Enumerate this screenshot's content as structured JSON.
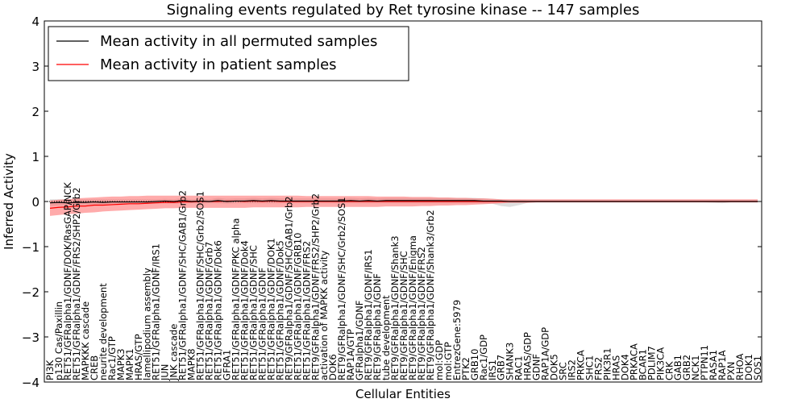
{
  "chart_data": {
    "type": "line",
    "title": "Signaling events regulated by Ret tyrosine kinase -- 147 samples",
    "xlabel": "Cellular Entities",
    "ylabel": "Inferred Activity",
    "ylim": [
      -4,
      4
    ],
    "yticks": [
      4,
      3,
      2,
      1,
      0,
      -1,
      -2,
      -3,
      -4
    ],
    "legend_placement": "top-left",
    "grid": false,
    "series": [
      {
        "name": "Mean activity in all permuted samples",
        "color": "#000000",
        "values": [
          -0.03,
          -0.02,
          -0.03,
          -0.02,
          -0.02,
          -0.01,
          -0.02,
          -0.01,
          -0.01,
          -0.01,
          -0.01,
          -0.01,
          0,
          0.01,
          0,
          0.02,
          0,
          0.01,
          0,
          0.02,
          0,
          0.01,
          0.01,
          0.02,
          0.01,
          0.02,
          0.01,
          0.01,
          0.01,
          0.01,
          0.01,
          0.01,
          0.01,
          0.01,
          0.02,
          0.01,
          0.02,
          0.01,
          0.02,
          0.02,
          0.02,
          0.02,
          0.02,
          0.02,
          0.02,
          0.02,
          0.02,
          0.02,
          0.02,
          0.01,
          0.01,
          0.01,
          0,
          0,
          0,
          0,
          0,
          0,
          0,
          0,
          0,
          0,
          0,
          0,
          0,
          0,
          0,
          0,
          0,
          0,
          0,
          0,
          0,
          0,
          0,
          0,
          0,
          0,
          0,
          0,
          0
        ]
      },
      {
        "name": "Mean activity in patient samples",
        "color": "#ff0000",
        "values": [
          -0.15,
          -0.13,
          -0.12,
          -0.1,
          -0.1,
          -0.08,
          -0.08,
          -0.07,
          -0.06,
          -0.05,
          -0.05,
          -0.04,
          -0.03,
          -0.02,
          -0.02,
          -0.01,
          -0.01,
          0,
          0,
          0,
          0.01,
          0.01,
          0,
          0.01,
          0,
          0.01,
          0,
          0,
          0,
          0,
          0,
          0,
          0,
          0,
          0,
          0,
          0,
          0,
          0,
          0,
          0,
          0,
          0,
          0,
          0,
          0,
          0,
          0,
          0,
          0,
          0,
          0,
          0,
          0,
          0,
          0,
          0,
          0,
          0,
          0,
          0,
          0,
          0,
          0,
          0,
          0,
          0,
          0,
          0,
          0,
          0,
          0,
          0,
          0,
          0,
          0,
          0,
          0,
          0,
          0,
          0
        ]
      }
    ],
    "permuted_band": {
      "color": "#c8c8c8",
      "lower": [
        -0.1,
        -0.09,
        -0.08,
        -0.08,
        -0.07,
        -0.07,
        -0.06,
        -0.06,
        -0.06,
        -0.05,
        -0.05,
        -0.05,
        -0.04,
        -0.04,
        -0.05,
        -0.04,
        -0.04,
        -0.05,
        -0.04,
        -0.04,
        -0.05,
        -0.04,
        -0.04,
        -0.04,
        -0.04,
        -0.04,
        -0.04,
        -0.04,
        -0.04,
        -0.04,
        -0.04,
        -0.04,
        -0.04,
        -0.04,
        -0.04,
        -0.04,
        -0.04,
        -0.04,
        -0.04,
        -0.04,
        -0.04,
        -0.04,
        -0.04,
        -0.04,
        -0.04,
        -0.04,
        -0.04,
        -0.04,
        -0.04,
        -0.05,
        -0.05,
        -0.1,
        -0.12,
        -0.08,
        -0.03,
        -0.02,
        -0.02,
        -0.02,
        -0.02,
        -0.02,
        -0.02,
        -0.02,
        -0.02,
        -0.02,
        -0.02,
        -0.02,
        -0.02,
        -0.02,
        -0.02,
        -0.02,
        -0.02,
        -0.02,
        -0.02,
        -0.02,
        -0.02,
        -0.03,
        -0.04,
        -0.02,
        -0.02,
        -0.02,
        -0.02
      ],
      "upper": [
        0.05,
        0.05,
        0.05,
        0.05,
        0.05,
        0.05,
        0.05,
        0.05,
        0.05,
        0.05,
        0.05,
        0.05,
        0.05,
        0.06,
        0.05,
        0.08,
        0.05,
        0.06,
        0.05,
        0.08,
        0.06,
        0.07,
        0.07,
        0.08,
        0.07,
        0.08,
        0.07,
        0.07,
        0.07,
        0.07,
        0.07,
        0.07,
        0.07,
        0.07,
        0.08,
        0.07,
        0.08,
        0.07,
        0.08,
        0.08,
        0.08,
        0.08,
        0.08,
        0.08,
        0.08,
        0.08,
        0.08,
        0.08,
        0.08,
        0.07,
        0.06,
        0.05,
        0.04,
        0.04,
        0.03,
        0.03,
        0.03,
        0.03,
        0.03,
        0.03,
        0.03,
        0.03,
        0.03,
        0.03,
        0.03,
        0.03,
        0.03,
        0.03,
        0.03,
        0.03,
        0.03,
        0.03,
        0.03,
        0.03,
        0.03,
        0.03,
        0.03,
        0.03,
        0.03,
        0.03,
        0.03
      ]
    },
    "patient_band": {
      "color": "#ff6666",
      "lower": [
        -0.32,
        -0.3,
        -0.28,
        -0.27,
        -0.25,
        -0.24,
        -0.22,
        -0.21,
        -0.2,
        -0.19,
        -0.18,
        -0.17,
        -0.16,
        -0.15,
        -0.15,
        -0.14,
        -0.14,
        -0.14,
        -0.14,
        -0.14,
        -0.14,
        -0.14,
        -0.14,
        -0.13,
        -0.13,
        -0.13,
        -0.13,
        -0.13,
        -0.13,
        -0.12,
        -0.12,
        -0.12,
        -0.12,
        -0.12,
        -0.12,
        -0.12,
        -0.12,
        -0.12,
        -0.11,
        -0.11,
        -0.11,
        -0.11,
        -0.1,
        -0.1,
        -0.09,
        -0.09,
        -0.08,
        -0.08,
        -0.07,
        -0.06,
        -0.05,
        -0.04,
        -0.03,
        -0.03,
        -0.03,
        -0.02,
        -0.02,
        -0.02,
        -0.02,
        -0.02,
        -0.02,
        -0.02,
        -0.02,
        -0.02,
        -0.02,
        -0.02,
        -0.02,
        -0.02,
        -0.02,
        -0.02,
        -0.02,
        -0.02,
        -0.02,
        -0.02,
        -0.02,
        -0.02,
        -0.02,
        -0.02,
        -0.02,
        -0.02,
        -0.02
      ],
      "upper": [
        0.02,
        0.04,
        0.05,
        0.07,
        0.08,
        0.09,
        0.1,
        0.11,
        0.11,
        0.12,
        0.12,
        0.13,
        0.13,
        0.13,
        0.13,
        0.13,
        0.13,
        0.13,
        0.13,
        0.13,
        0.13,
        0.13,
        0.13,
        0.13,
        0.13,
        0.13,
        0.13,
        0.13,
        0.13,
        0.12,
        0.12,
        0.12,
        0.12,
        0.12,
        0.12,
        0.12,
        0.12,
        0.11,
        0.11,
        0.11,
        0.11,
        0.1,
        0.1,
        0.1,
        0.09,
        0.09,
        0.08,
        0.08,
        0.07,
        0.07,
        0.06,
        0.05,
        0.05,
        0.05,
        0.05,
        0.05,
        0.05,
        0.05,
        0.05,
        0.05,
        0.05,
        0.05,
        0.05,
        0.05,
        0.05,
        0.05,
        0.05,
        0.05,
        0.05,
        0.05,
        0.05,
        0.05,
        0.05,
        0.05,
        0.05,
        0.05,
        0.05,
        0.05,
        0.05,
        0.05,
        0.05
      ]
    },
    "categories": [
      "PI3K",
      "p130 Cas/Paxillin",
      "RET51/GFRalpha1/GDNF/DOK/RasGAP/NCK",
      "RET51/GFRalpha1/GDNF/FRS2/SHP2/Grb2",
      "MAPKKK cascade",
      "CREB",
      "neurite development",
      "Rac1/GTP",
      "MAPK3",
      "MAPK1",
      "HRAS/GTP",
      "lamellipodium assembly",
      "RET51/GFRalpha1/GDNF/IRS1",
      "JUN",
      "JNK cascade",
      "RET51/GFRalpha1/GDNF/SHC/GAB1/Grb2",
      "MAPK8",
      "RET51/GFRalpha1/GDNF/SHC/Grb2/SOS1",
      "RET51/GFRalpha1/GDNF/Grb7",
      "RET51/GFRalpha1/GDNF/Dok6",
      "GFRA1",
      "RET51/GFRalpha1/GDNF/PKC alpha",
      "RET51/GFRalpha1/GDNF/Dok4",
      "RET51/GFRalpha1/GDNF/SHC",
      "RET51/GFRalpha1/GDNF",
      "RET51/GFRalpha1/GDNF/DOK1",
      "RET51/GFRalpha1/GDNF/Dok5",
      "RET9/GFRalpha1/GDNF/SHC/GAB1/Grb2",
      "RET51/GFRalpha1/GDNF/GRB10",
      "RET51/GFRalpha1/GDNF/FRS2",
      "RET9/GFRalpha1/GDNF/FRS2/SHP2/Grb2",
      "activation of MAPKK activity",
      "DOK6",
      "RET9/GFRalpha1/GDNF/SHC/Grb2/SOS1",
      "RAP1A/GTP",
      "GFRalpha1/GDNF",
      "RET9/GFRalpha1/GDNF/IRS1",
      "RET9/GFRalpha1/GDNF",
      "tube development",
      "RET9/GFRalpha1/GDNF/Shank3",
      "RET9/GFRalpha1/GDNF/SHC",
      "RET9/GFRalpha1/GDNF/Enigma",
      "RET9/GFRalpha1/GDNF/FRS2",
      "RET9/GFRalpha1/GDNF/Shank3/Grb2",
      "mol:GDP",
      "mol:GTP",
      "EntrezGene:5979",
      "PTK2",
      "GRB10",
      "Rac1/GDP",
      "IRS1",
      "GRB7",
      "SHANK3",
      "RAC1",
      "HRAS/GDP",
      "GDNF",
      "RAP1A/GDP",
      "DOK5",
      "SRC",
      "IRS2",
      "PRKCA",
      "SHC1",
      "FRS2",
      "PIK3R1",
      "HRAS",
      "DOK4",
      "PRKACA",
      "BCAR1",
      "PDLIM7",
      "PIK3CA",
      "CRK",
      "GAB1",
      "GRB2",
      "NCK1",
      "PTPN11",
      "RASA1",
      "RAP1A",
      "PXN",
      "RHOA",
      "DOK1",
      "SOS1"
    ]
  }
}
